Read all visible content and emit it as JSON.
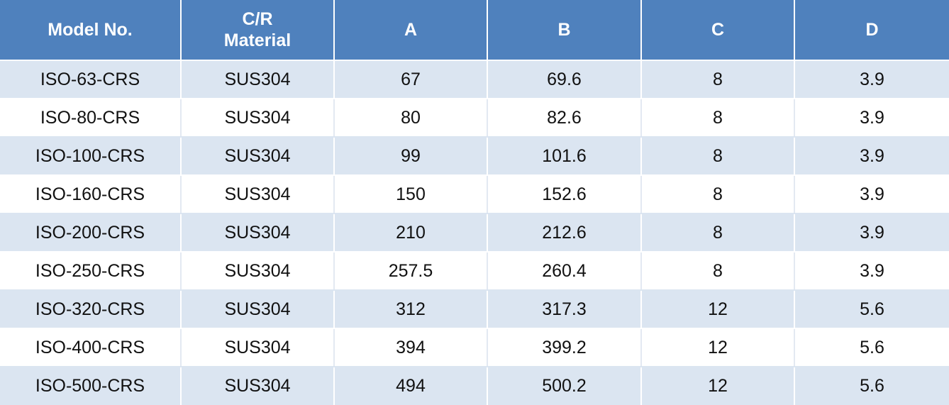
{
  "table": {
    "headers": {
      "model": "Model No.",
      "material_line1": "C/R",
      "material_line2": "Material",
      "a": "A",
      "b": "B",
      "c": "C",
      "d": "D"
    },
    "rows": [
      [
        "ISO-63-CRS",
        "SUS304",
        "67",
        "69.6",
        "8",
        "3.9"
      ],
      [
        "ISO-80-CRS",
        "SUS304",
        "80",
        "82.6",
        "8",
        "3.9"
      ],
      [
        "ISO-100-CRS",
        "SUS304",
        "99",
        "101.6",
        "8",
        "3.9"
      ],
      [
        "ISO-160-CRS",
        "SUS304",
        "150",
        "152.6",
        "8",
        "3.9"
      ],
      [
        "ISO-200-CRS",
        "SUS304",
        "210",
        "212.6",
        "8",
        "3.9"
      ],
      [
        "ISO-250-CRS",
        "SUS304",
        "257.5",
        "260.4",
        "8",
        "3.9"
      ],
      [
        "ISO-320-CRS",
        "SUS304",
        "312",
        "317.3",
        "12",
        "5.6"
      ],
      [
        "ISO-400-CRS",
        "SUS304",
        "394",
        "399.2",
        "12",
        "5.6"
      ],
      [
        "ISO-500-CRS",
        "SUS304",
        "494",
        "500.2",
        "12",
        "5.6"
      ]
    ],
    "colors": {
      "header_bg": "#4f81bd",
      "header_text": "#ffffff",
      "row_band": "#dbe5f1",
      "row_plain": "#ffffff"
    }
  }
}
